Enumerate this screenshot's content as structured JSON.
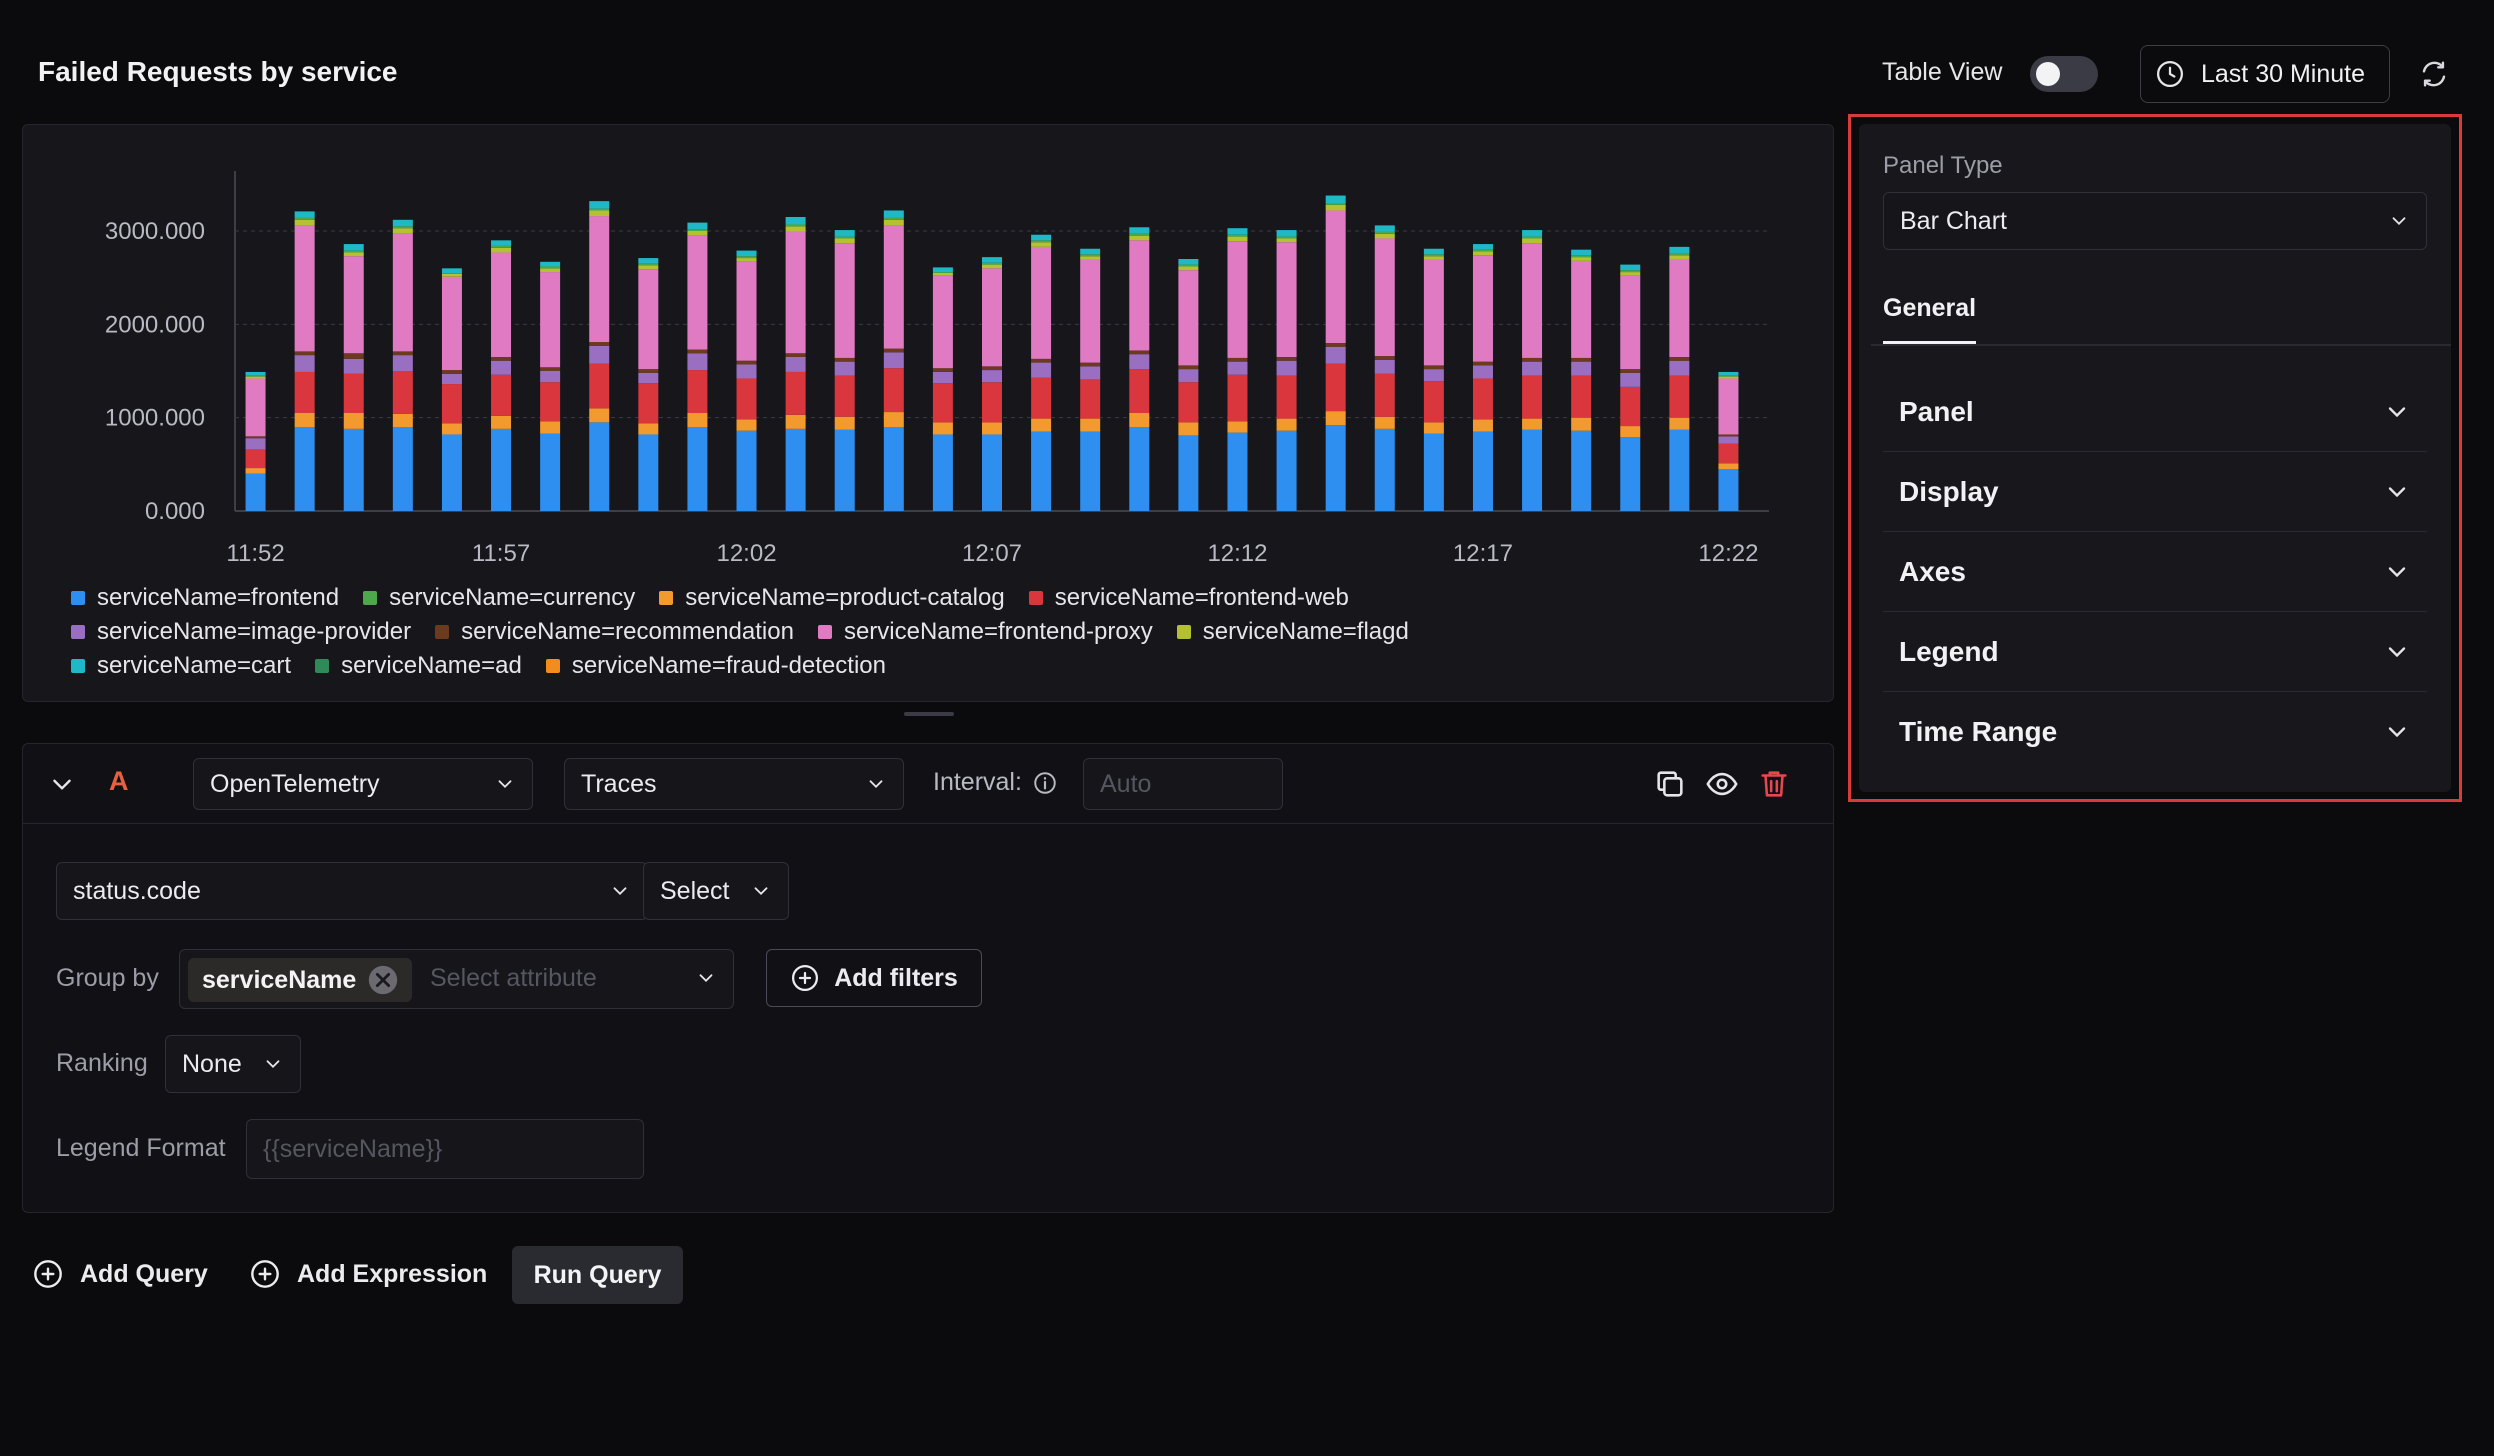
{
  "header": {
    "title": "Failed Requests by service",
    "table_view_label": "Table View",
    "table_view_on": false,
    "time_range": "Last 30 Minute"
  },
  "chart_data": {
    "type": "bar",
    "stacked": true,
    "x": [
      "11:52",
      "11:53",
      "11:54",
      "11:55",
      "11:56",
      "11:57",
      "11:58",
      "11:59",
      "12:00",
      "12:01",
      "12:02",
      "12:03",
      "12:04",
      "12:05",
      "12:06",
      "12:07",
      "12:08",
      "12:09",
      "12:10",
      "12:11",
      "12:12",
      "12:13",
      "12:14",
      "12:15",
      "12:16",
      "12:17",
      "12:18",
      "12:19",
      "12:20",
      "12:21",
      "12:22"
    ],
    "x_tick_labels": [
      "11:52",
      "11:57",
      "12:02",
      "12:07",
      "12:12",
      "12:17",
      "12:22"
    ],
    "y_tick_labels": [
      "0.000",
      "1000.000",
      "2000.000",
      "3000.000"
    ],
    "ylim": [
      0,
      3600
    ],
    "grid": true,
    "series": [
      {
        "name": "serviceName=frontend",
        "color": "#2e8ff0",
        "values": [
          400,
          900,
          880,
          900,
          820,
          880,
          830,
          950,
          820,
          900,
          860,
          880,
          870,
          900,
          820,
          820,
          850,
          850,
          900,
          810,
          840,
          860,
          920,
          880,
          830,
          850,
          870,
          860,
          790,
          870,
          450
        ]
      },
      {
        "name": "serviceName=product-catalog",
        "color": "#f29a2e",
        "values": [
          60,
          150,
          170,
          140,
          120,
          140,
          130,
          150,
          120,
          150,
          120,
          150,
          140,
          160,
          130,
          130,
          140,
          140,
          150,
          140,
          120,
          130,
          150,
          130,
          120,
          130,
          120,
          140,
          120,
          130,
          60
        ]
      },
      {
        "name": "serviceName=frontend-web",
        "color": "#d9363e",
        "values": [
          200,
          440,
          420,
          460,
          420,
          440,
          420,
          480,
          430,
          460,
          440,
          460,
          440,
          470,
          420,
          430,
          440,
          420,
          470,
          430,
          500,
          460,
          510,
          460,
          440,
          440,
          460,
          450,
          420,
          450,
          210
        ]
      },
      {
        "name": "serviceName=image-provider",
        "color": "#9a6fc2",
        "values": [
          120,
          180,
          160,
          170,
          110,
          150,
          120,
          190,
          110,
          180,
          150,
          160,
          150,
          170,
          120,
          130,
          160,
          140,
          160,
          140,
          140,
          160,
          180,
          150,
          130,
          140,
          150,
          150,
          150,
          160,
          80
        ]
      },
      {
        "name": "serviceName=recommendation",
        "color": "#6b3a1f",
        "values": [
          20,
          40,
          60,
          40,
          40,
          40,
          40,
          40,
          40,
          40,
          40,
          40,
          40,
          40,
          40,
          40,
          40,
          40,
          40,
          40,
          40,
          40,
          40,
          40,
          40,
          40,
          40,
          40,
          40,
          40,
          20
        ]
      },
      {
        "name": "serviceName=frontend-proxy",
        "color": "#e07bc3",
        "values": [
          620,
          1350,
          1040,
          1260,
          1000,
          1120,
          1020,
          1350,
          1070,
          1220,
          1060,
          1300,
          1230,
          1320,
          990,
          1050,
          1200,
          1100,
          1180,
          1020,
          1250,
          1230,
          1420,
          1260,
          1130,
          1140,
          1230,
          1040,
          1000,
          1050,
          600
        ]
      },
      {
        "name": "serviceName=flagd",
        "color": "#b4c231",
        "values": [
          20,
          60,
          40,
          60,
          30,
          50,
          40,
          60,
          40,
          50,
          40,
          60,
          50,
          60,
          30,
          40,
          50,
          40,
          50,
          40,
          50,
          40,
          60,
          50,
          40,
          40,
          50,
          40,
          40,
          40,
          20
        ]
      },
      {
        "name": "serviceName=currency",
        "color": "#4ca84a",
        "values": [
          10,
          20,
          20,
          20,
          10,
          20,
          20,
          20,
          20,
          20,
          20,
          20,
          20,
          20,
          10,
          20,
          20,
          20,
          20,
          20,
          20,
          20,
          20,
          20,
          20,
          20,
          20,
          20,
          20,
          20,
          10
        ]
      },
      {
        "name": "serviceName=cart",
        "color": "#1fb8c6",
        "values": [
          40,
          70,
          70,
          70,
          50,
          60,
          50,
          80,
          60,
          70,
          60,
          80,
          70,
          80,
          50,
          60,
          60,
          60,
          70,
          60,
          70,
          70,
          80,
          70,
          60,
          60,
          70,
          60,
          60,
          70,
          40
        ]
      },
      {
        "name": "serviceName=ad",
        "color": "#2f8a5a",
        "values": [
          0,
          0,
          0,
          0,
          0,
          0,
          0,
          0,
          0,
          0,
          0,
          0,
          0,
          0,
          0,
          0,
          0,
          0,
          0,
          0,
          0,
          0,
          0,
          0,
          0,
          0,
          0,
          0,
          0,
          0,
          0
        ]
      },
      {
        "name": "serviceName=fraud-detection",
        "color": "#f38b1d",
        "values": [
          0,
          0,
          0,
          0,
          0,
          0,
          0,
          0,
          0,
          0,
          0,
          0,
          0,
          0,
          0,
          0,
          0,
          0,
          0,
          0,
          0,
          0,
          0,
          0,
          0,
          0,
          0,
          0,
          0,
          0,
          0
        ]
      }
    ],
    "legend_rows": [
      [
        "serviceName=frontend",
        "serviceName=currency",
        "serviceName=product-catalog",
        "serviceName=frontend-web"
      ],
      [
        "serviceName=image-provider",
        "serviceName=recommendation",
        "serviceName=frontend-proxy",
        "serviceName=flagd"
      ],
      [
        "serviceName=cart",
        "serviceName=ad",
        "serviceName=fraud-detection"
      ]
    ],
    "legend_placement": "bottom-left"
  },
  "query": {
    "letter": "A",
    "data_source": "OpenTelemetry",
    "signal": "Traces",
    "interval_label": "Interval:",
    "interval_placeholder": "Auto",
    "attribute": "status.code",
    "aggregation": "Select",
    "group_by_label": "Group by",
    "group_by_chip": "serviceName",
    "group_by_placeholder": "Select attribute",
    "add_filters": "Add filters",
    "ranking_label": "Ranking",
    "ranking_value": "None",
    "legend_format_label": "Legend Format",
    "legend_format_placeholder": "{{serviceName}}"
  },
  "actions": {
    "add_query": "Add Query",
    "add_expression": "Add Expression",
    "run_query": "Run Query"
  },
  "settings": {
    "panel_type_label": "Panel Type",
    "panel_type_value": "Bar Chart",
    "tab_general": "General",
    "sections": [
      "Panel",
      "Display",
      "Axes",
      "Legend",
      "Time Range"
    ]
  },
  "colors": {
    "accent_red": "#d93a3a",
    "query_letter": "#e5623f",
    "background": "#0b0b0e"
  }
}
